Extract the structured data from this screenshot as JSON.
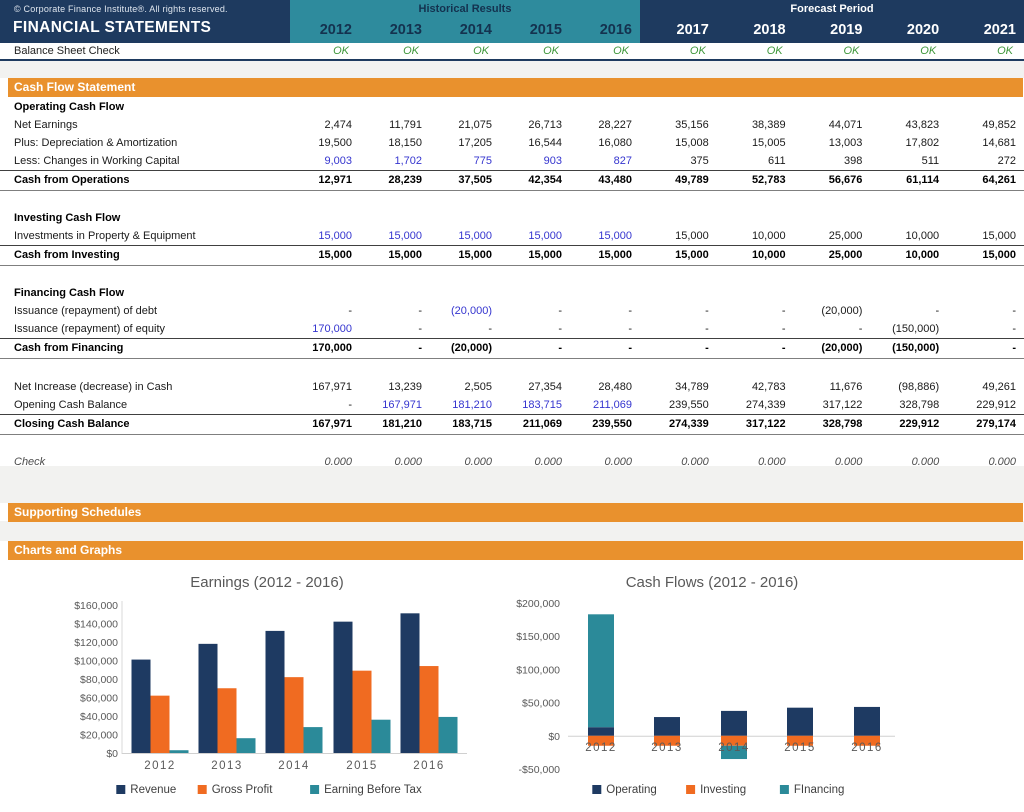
{
  "header": {
    "copyright": "© Corporate Finance Institute®. All rights reserved.",
    "title": "FINANCIAL STATEMENTS",
    "historical_label": "Historical Results",
    "forecast_label": "Forecast Period",
    "historical_years": [
      "2012",
      "2013",
      "2014",
      "2015",
      "2016"
    ],
    "forecast_years": [
      "2017",
      "2018",
      "2019",
      "2020",
      "2021"
    ]
  },
  "balance_check": {
    "label": "Balance Sheet Check",
    "values": [
      "OK",
      "OK",
      "OK",
      "OK",
      "OK",
      "OK",
      "OK",
      "OK",
      "OK",
      "OK"
    ]
  },
  "section_bars": {
    "cash_flow": "Cash Flow Statement",
    "supporting": "Supporting Schedules",
    "charts": "Charts and Graphs"
  },
  "statement": {
    "rows": [
      {
        "type": "section",
        "label": "Operating Cash Flow"
      },
      {
        "type": "data",
        "label": "Net Earnings",
        "values": [
          "2,474",
          "11,791",
          "21,075",
          "26,713",
          "28,227",
          "35,156",
          "38,389",
          "44,071",
          "43,823",
          "49,852"
        ]
      },
      {
        "type": "data",
        "label": "Plus: Depreciation & Amortization",
        "values": [
          "19,500",
          "18,150",
          "17,205",
          "16,544",
          "16,080",
          "15,008",
          "15,005",
          "13,003",
          "17,802",
          "14,681"
        ]
      },
      {
        "type": "data",
        "label": "Less: Changes in Working Capital",
        "values": [
          "9,003",
          "1,702",
          "775",
          "903",
          "827",
          "375",
          "611",
          "398",
          "511",
          "272"
        ],
        "blue": [
          1,
          1,
          1,
          1,
          1,
          0,
          0,
          0,
          0,
          0
        ]
      },
      {
        "type": "total",
        "label": "Cash from Operations",
        "values": [
          "12,971",
          "28,239",
          "37,505",
          "42,354",
          "43,480",
          "49,789",
          "52,783",
          "56,676",
          "61,114",
          "64,261"
        ]
      },
      {
        "type": "spacer"
      },
      {
        "type": "section",
        "label": "Investing Cash Flow"
      },
      {
        "type": "data",
        "label": "Investments in Property & Equipment",
        "values": [
          "15,000",
          "15,000",
          "15,000",
          "15,000",
          "15,000",
          "15,000",
          "10,000",
          "25,000",
          "10,000",
          "15,000"
        ],
        "blue": [
          1,
          1,
          1,
          1,
          1,
          0,
          0,
          0,
          0,
          0
        ]
      },
      {
        "type": "total",
        "label": "Cash from Investing",
        "values": [
          "15,000",
          "15,000",
          "15,000",
          "15,000",
          "15,000",
          "15,000",
          "10,000",
          "25,000",
          "10,000",
          "15,000"
        ]
      },
      {
        "type": "spacer"
      },
      {
        "type": "section",
        "label": "Financing Cash Flow"
      },
      {
        "type": "data",
        "label": "Issuance (repayment) of debt",
        "values": [
          "-",
          "-",
          "(20,000)",
          "-",
          "-",
          "-",
          "-",
          "(20,000)",
          "-",
          "-"
        ],
        "blue": [
          0,
          0,
          1,
          0,
          0,
          0,
          0,
          0,
          0,
          0
        ]
      },
      {
        "type": "data",
        "label": "Issuance (repayment) of equity",
        "values": [
          "170,000",
          "-",
          "-",
          "-",
          "-",
          "-",
          "-",
          "-",
          "(150,000)",
          "-"
        ],
        "blue": [
          1,
          0,
          0,
          0,
          0,
          0,
          0,
          0,
          0,
          0
        ]
      },
      {
        "type": "total",
        "label": "Cash from Financing",
        "values": [
          "170,000",
          "-",
          "(20,000)",
          "-",
          "-",
          "-",
          "-",
          "(20,000)",
          "(150,000)",
          "-"
        ]
      },
      {
        "type": "spacer"
      },
      {
        "type": "data",
        "label": "Net Increase (decrease) in Cash",
        "values": [
          "167,971",
          "13,239",
          "2,505",
          "27,354",
          "28,480",
          "34,789",
          "42,783",
          "11,676",
          "(98,886)",
          "49,261"
        ]
      },
      {
        "type": "data",
        "label": "Opening Cash Balance",
        "values": [
          "-",
          "167,971",
          "181,210",
          "183,715",
          "211,069",
          "239,550",
          "274,339",
          "317,122",
          "328,798",
          "229,912"
        ],
        "blue": [
          0,
          1,
          1,
          1,
          1,
          0,
          0,
          0,
          0,
          0
        ]
      },
      {
        "type": "total",
        "label": "Closing Cash Balance",
        "values": [
          "167,971",
          "181,210",
          "183,715",
          "211,069",
          "239,550",
          "274,339",
          "317,122",
          "328,798",
          "229,912",
          "279,174"
        ]
      },
      {
        "type": "spacer",
        "h": 18
      },
      {
        "type": "check",
        "label": "Check",
        "values": [
          "0.000",
          "0.000",
          "0.000",
          "0.000",
          "0.000",
          "0.000",
          "0.000",
          "0.000",
          "0.000",
          "0.000"
        ]
      }
    ]
  },
  "colors": {
    "navy": "#1e3a5f",
    "teal": "#2e8b9d",
    "orange_bar": "#e9912d",
    "chart_navy": "#1e3a62",
    "chart_orange": "#f06b21",
    "chart_teal": "#2b8a99",
    "blue_input": "#3535cf",
    "ok_green": "#3c9639",
    "chart_text": "#595959"
  },
  "chart_data": [
    {
      "type": "bar",
      "stacked": false,
      "title": "Earnings (2012 - 2016)",
      "categories": [
        "2012",
        "2013",
        "2014",
        "2015",
        "2016"
      ],
      "series": [
        {
          "name": "Revenue",
          "color": "#1e3a62",
          "values": [
            101000,
            118000,
            132000,
            142000,
            151000
          ]
        },
        {
          "name": "Gross Profit",
          "color": "#f06b21",
          "values": [
            62000,
            70000,
            82000,
            89000,
            94000
          ]
        },
        {
          "name": "Earning Before Tax",
          "color": "#2b8a99",
          "values": [
            3000,
            16000,
            28000,
            36000,
            39000
          ]
        }
      ],
      "ylim": [
        0,
        160000
      ],
      "yticks": [
        "$160,000",
        "$140,000",
        "$120,000",
        "$100,000",
        "$80,000",
        "$60,000",
        "$40,000",
        "$20,000",
        "$0"
      ],
      "xlabel": "",
      "ylabel": "",
      "legend_position": "bottom",
      "grid": false
    },
    {
      "type": "bar",
      "stacked": true,
      "title": "Cash Flows (2012 - 2016)",
      "categories": [
        "2012",
        "2013",
        "2014",
        "2015",
        "2016"
      ],
      "series": [
        {
          "name": "Operating",
          "color": "#1e3a62",
          "values": [
            12971,
            28239,
            37505,
            42354,
            43480
          ]
        },
        {
          "name": "Investing",
          "color": "#f06b21",
          "values": [
            -15000,
            -15000,
            -15000,
            -15000,
            -15000
          ]
        },
        {
          "name": "FInancing",
          "color": "#2b8a99",
          "values": [
            170000,
            0,
            -20000,
            0,
            0
          ]
        }
      ],
      "ylim": [
        -50000,
        200000
      ],
      "yticks": [
        "$200,000",
        "$150,000",
        "$100,000",
        "$50,000",
        "$0",
        "-$50,000"
      ],
      "xlabel": "",
      "ylabel": "",
      "legend_position": "bottom",
      "grid": false
    }
  ]
}
